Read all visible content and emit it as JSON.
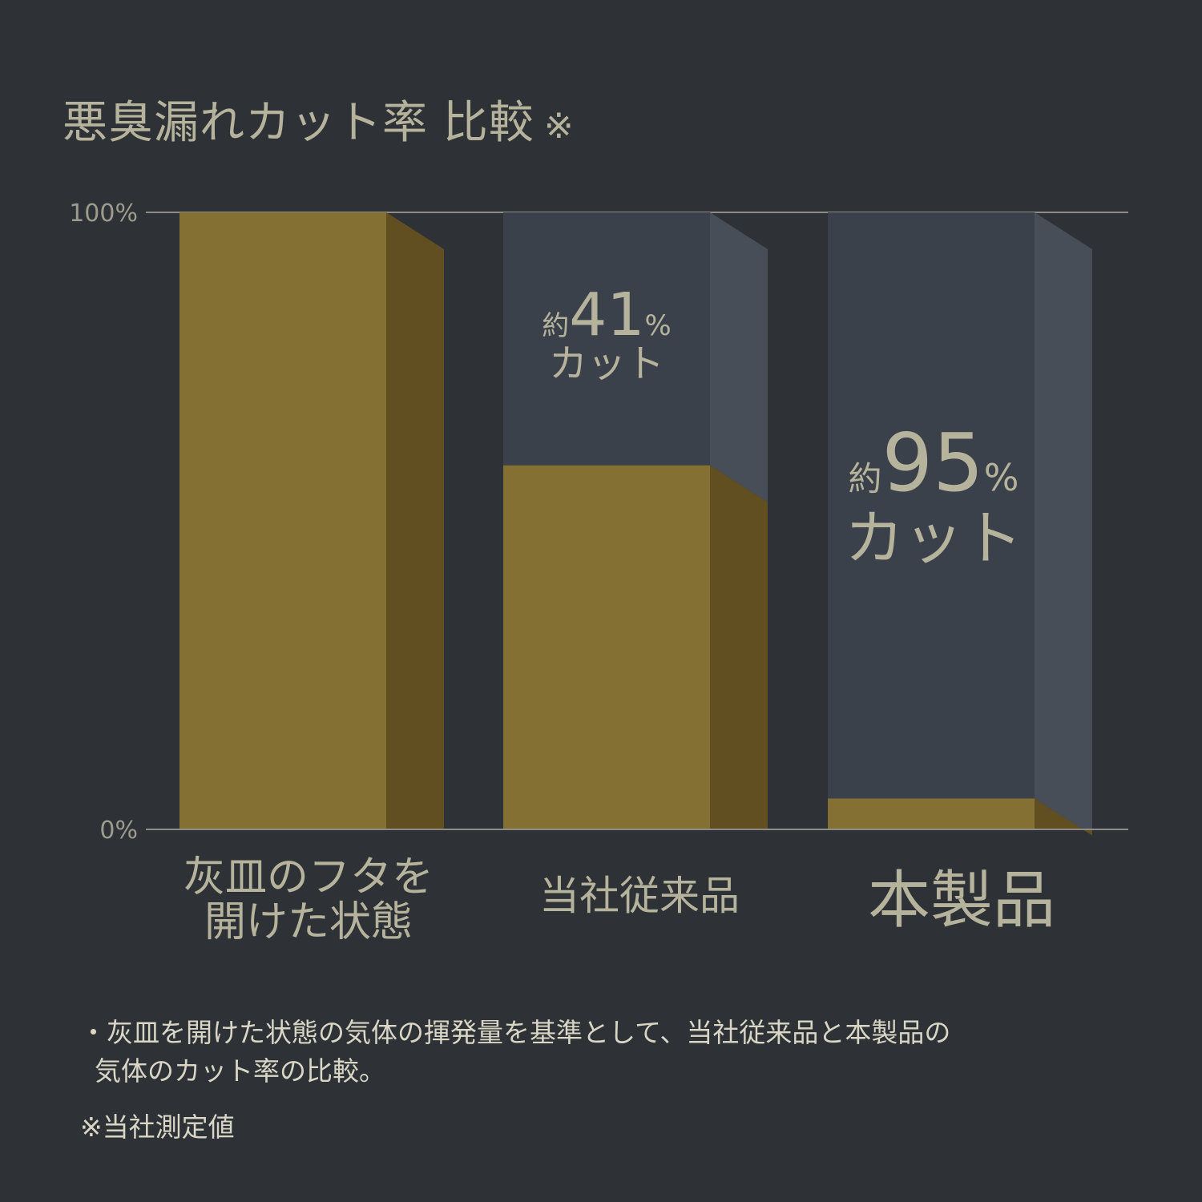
{
  "title": "悪臭漏れカット率 比較",
  "title_mark": "※",
  "chart_data": {
    "type": "bar",
    "title": "悪臭漏れカット率 比較 ※",
    "categories": [
      [
        "灰皿のフタを",
        "開けた状態"
      ],
      [
        "当社従来品"
      ],
      [
        "本製品"
      ]
    ],
    "series": [
      {
        "values": [
          100,
          59,
          5
        ]
      }
    ],
    "cut_labels": [
      null,
      {
        "prefix": "約",
        "number": "41",
        "unit": "%",
        "line2": "カット"
      },
      {
        "prefix": "約",
        "number": "95",
        "unit": "%",
        "line2": "カット"
      }
    ],
    "y_ticks": [
      "100%",
      "0%"
    ],
    "ylim": [
      0,
      100
    ],
    "colors": {
      "bar_front": "#857034",
      "bar_side": "#614f21",
      "cut_front": "#3b414a",
      "cut_side": "#474e58",
      "axis_line": "#8d8d86"
    }
  },
  "notes": [
    "・灰皿を開けた状態の気体の揮発量を基準として、当社従来品と本製品の",
    "気体のカット率の比較。",
    "※当社測定値"
  ]
}
